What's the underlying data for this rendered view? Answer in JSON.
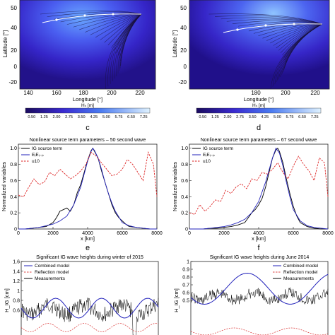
{
  "maps": {
    "left": {
      "ylabel": "Latitude [°]",
      "xlabel": "Longitude [°]",
      "xticks": [
        "140",
        "160",
        "180",
        "200",
        "220"
      ],
      "yticks": [
        "50",
        "40",
        "20",
        "0",
        "-20"
      ],
      "colorbar_label": "Hₛ [m]",
      "colorbar_ticks": [
        "0.50",
        "1.25",
        "2.00",
        "2.75",
        "3.50",
        "4.25",
        "5.00",
        "5.75",
        "6.50",
        "7.25"
      ]
    },
    "right": {
      "ylabel": "Latitude [°]",
      "xlabel": "Longitude [°]",
      "xticks": [
        "180",
        "200",
        "220"
      ],
      "yticks": [
        "50",
        "40",
        "20",
        "0",
        "-20"
      ],
      "colorbar_label": "Hₛ [m]",
      "colorbar_ticks": [
        "0.50",
        "1.25",
        "2.00",
        "2.75",
        "3.50",
        "4.25",
        "5.00",
        "5.75",
        "6.50",
        "7.25"
      ]
    }
  },
  "panel_labels": {
    "c": "c",
    "d": "d",
    "e": "e",
    "f": "f"
  },
  "chart_data": [
    {
      "panel": "c",
      "type": "line",
      "title": "Nonlinear source term parameters – 50 second wave",
      "xlabel": "x [km]",
      "ylabel": "Normalized variables",
      "xlim": [
        0,
        8000
      ],
      "ylim": [
        0,
        1.05
      ],
      "xticks": [
        "0",
        "2000",
        "4000",
        "6000",
        "8000"
      ],
      "yticks": [
        "0",
        "0.2",
        "0.4",
        "0.6",
        "0.8",
        "1.0"
      ],
      "legend_position": "top-left",
      "series": [
        {
          "name": "IG source term",
          "color": "#000000",
          "dash": "solid",
          "x": [
            0,
            400,
            800,
            1200,
            1600,
            2000,
            2200,
            2400,
            2800,
            3000,
            3200,
            3400,
            3600,
            3800,
            4000,
            4200,
            4300,
            4400,
            4600,
            4800,
            5000,
            5200,
            5400,
            5600,
            5800,
            6000,
            6200,
            6400,
            6800,
            7200,
            7600,
            8000
          ],
          "y": [
            0,
            0,
            0.01,
            0.02,
            0.03,
            0.08,
            0.14,
            0.22,
            0.26,
            0.22,
            0.3,
            0.45,
            0.55,
            0.7,
            0.85,
            0.97,
            1.0,
            0.96,
            0.88,
            0.72,
            0.58,
            0.44,
            0.3,
            0.2,
            0.14,
            0.1,
            0.06,
            0.03,
            0.02,
            0.01,
            0.0,
            0.0
          ]
        },
        {
          "name": "EᵢEᵢ₋ₚ",
          "color": "#2222bb",
          "dash": "solid",
          "x": [
            0,
            400,
            800,
            1200,
            1600,
            2000,
            2400,
            2800,
            3200,
            3600,
            3800,
            4000,
            4200,
            4300,
            4400,
            4600,
            4800,
            5000,
            5200,
            5400,
            5600,
            5800,
            6000,
            6400,
            6800,
            7200,
            7600,
            8000
          ],
          "y": [
            0,
            0.0,
            0.01,
            0.02,
            0.04,
            0.06,
            0.1,
            0.16,
            0.3,
            0.52,
            0.68,
            0.84,
            0.96,
            1.0,
            0.97,
            0.88,
            0.74,
            0.58,
            0.44,
            0.32,
            0.22,
            0.15,
            0.08,
            0.04,
            0.02,
            0.01,
            0.0,
            0.0
          ]
        },
        {
          "name": "u10",
          "color": "#dd2222",
          "dash": "dashed",
          "x": [
            0,
            300,
            600,
            900,
            1200,
            1500,
            1800,
            2100,
            2400,
            2700,
            3000,
            3300,
            3600,
            3900,
            4200,
            4500,
            4800,
            5100,
            5400,
            5700,
            6000,
            6300,
            6600,
            6900,
            7200,
            7500,
            7800,
            8000
          ],
          "y": [
            0.42,
            0.4,
            0.52,
            0.62,
            0.55,
            0.58,
            0.7,
            0.66,
            0.74,
            0.68,
            0.62,
            0.66,
            0.72,
            0.8,
            0.95,
            0.9,
            0.82,
            0.74,
            0.66,
            0.68,
            0.74,
            0.86,
            0.8,
            0.7,
            0.6,
            0.95,
            0.8,
            0.4
          ]
        }
      ]
    },
    {
      "panel": "d",
      "type": "line",
      "title": "Nonlinear source term parameters – 67 second wave",
      "xlabel": "x [km]",
      "ylabel": "Normalized variables",
      "xlim": [
        0,
        8000
      ],
      "ylim": [
        0,
        1.05
      ],
      "xticks": [
        "0",
        "2000",
        "4000",
        "6000",
        "8000"
      ],
      "yticks": [
        "0",
        "0.2",
        "0.4",
        "0.6",
        "0.8",
        "1.0"
      ],
      "legend_position": "top-left",
      "series": [
        {
          "name": "IG source term",
          "color": "#000000",
          "dash": "solid",
          "x": [
            0,
            400,
            800,
            1200,
            1600,
            2000,
            2400,
            2800,
            3200,
            3400,
            3600,
            3800,
            4000,
            4200,
            4400,
            4600,
            4800,
            5000,
            5100,
            5200,
            5400,
            5600,
            5800,
            6000,
            6200,
            6400,
            6800,
            7200,
            7600,
            8000
          ],
          "y": [
            0,
            0,
            0,
            0.01,
            0.01,
            0.02,
            0.03,
            0.05,
            0.08,
            0.14,
            0.2,
            0.24,
            0.3,
            0.38,
            0.52,
            0.7,
            0.88,
            0.98,
            1.0,
            0.96,
            0.82,
            0.62,
            0.44,
            0.28,
            0.16,
            0.08,
            0.03,
            0.01,
            0.0,
            0.0
          ]
        },
        {
          "name": "EᵢEᵢ₋ₚ",
          "color": "#2222bb",
          "dash": "solid",
          "x": [
            0,
            400,
            800,
            1200,
            1600,
            2000,
            2400,
            2800,
            3200,
            3600,
            4000,
            4400,
            4800,
            5000,
            5200,
            5400,
            5600,
            5800,
            6000,
            6400,
            6800,
            7200,
            7600,
            8000
          ],
          "y": [
            0,
            0,
            0,
            0.01,
            0.02,
            0.03,
            0.05,
            0.08,
            0.12,
            0.2,
            0.34,
            0.58,
            0.88,
            1.0,
            0.94,
            0.78,
            0.58,
            0.4,
            0.24,
            0.1,
            0.04,
            0.02,
            0.01,
            0.0
          ]
        },
        {
          "name": "u10",
          "color": "#dd2222",
          "dash": "dashed",
          "x": [
            0,
            300,
            600,
            900,
            1200,
            1500,
            1800,
            2100,
            2400,
            2700,
            3000,
            3300,
            3600,
            3900,
            4200,
            4500,
            4800,
            5100,
            5400,
            5700,
            6000,
            6300,
            6600,
            6900,
            7200,
            7500,
            7800,
            8000
          ],
          "y": [
            0.2,
            0.18,
            0.3,
            0.22,
            0.28,
            0.36,
            0.34,
            0.48,
            0.44,
            0.52,
            0.56,
            0.5,
            0.62,
            0.6,
            0.7,
            0.68,
            0.74,
            0.82,
            0.7,
            0.62,
            0.78,
            0.9,
            0.8,
            0.72,
            0.6,
            0.88,
            0.82,
            0.4
          ]
        }
      ]
    },
    {
      "panel": "e",
      "type": "line",
      "title": "Significant IG wave heights during winter of 2015",
      "ylabel": "H_IG [cm]",
      "ylim": [
        0,
        1.6
      ],
      "yticks": [
        "0.6",
        "0.8",
        "1",
        "1.2",
        "1.4",
        "1.6"
      ],
      "legend_position": "top-left",
      "series": [
        {
          "name": "Combined model",
          "color": "#2222bb",
          "dash": "solid"
        },
        {
          "name": "Reflection model",
          "color": "#dd4444",
          "dash": "dashed"
        },
        {
          "name": "Measurements",
          "color": "#000000",
          "dash": "solid"
        }
      ]
    },
    {
      "panel": "f",
      "type": "line",
      "title": "Significant IG wave heights during June 2014",
      "ylabel": "H_IG [cm]",
      "ylim": [
        0,
        1.0
      ],
      "yticks": [
        "0.5",
        "0.6",
        "0.7",
        "0.8",
        "0.9",
        "1"
      ],
      "legend_position": "top-right",
      "series": [
        {
          "name": "Combined model",
          "color": "#2222bb",
          "dash": "solid"
        },
        {
          "name": "Reflection model",
          "color": "#dd4444",
          "dash": "dashed"
        },
        {
          "name": "Measurements",
          "color": "#000000",
          "dash": "solid"
        }
      ]
    }
  ]
}
